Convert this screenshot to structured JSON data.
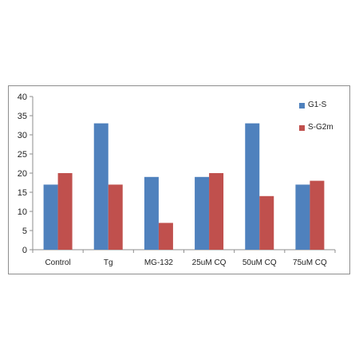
{
  "chart_data": {
    "type": "bar",
    "categories": [
      "Control",
      "Tg",
      "MG-132",
      "25uM CQ",
      "50uM CQ",
      "75uM CQ"
    ],
    "series": [
      {
        "name": "G1-S",
        "color": "#4f81bd",
        "values": [
          17,
          33,
          19,
          19,
          33,
          17
        ]
      },
      {
        "name": "S-G2m",
        "color": "#c0504d",
        "values": [
          20,
          17,
          7,
          20,
          14,
          18
        ]
      }
    ],
    "yticks": [
      "0",
      "5",
      "10",
      "15",
      "20",
      "25",
      "30",
      "35",
      "40"
    ],
    "ylim": [
      0,
      40
    ],
    "grid": false,
    "legend_position": "right"
  }
}
